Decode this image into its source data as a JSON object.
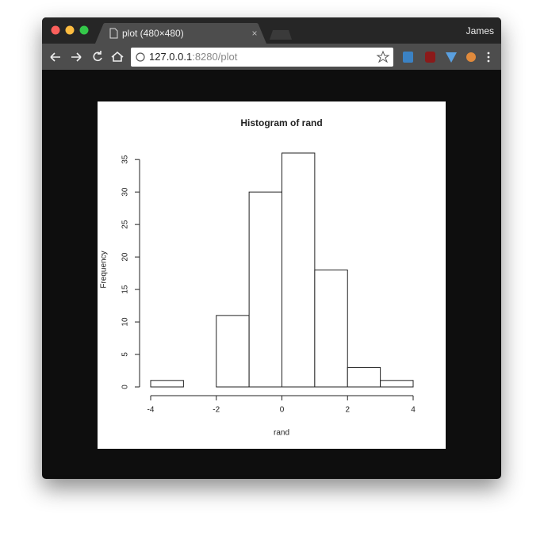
{
  "browser": {
    "tab_title": "plot (480×480)",
    "user": "James",
    "url_host": "127.0.0.1",
    "url_path": ":8280/plot"
  },
  "chart_data": {
    "type": "histogram",
    "title": "Histogram of rand",
    "x_label": "rand",
    "y_label": "Frequency",
    "bins": [
      -4,
      -3,
      -2,
      -1,
      0,
      1,
      2,
      3,
      4
    ],
    "values": [
      1,
      0,
      11,
      30,
      36,
      18,
      3,
      1
    ],
    "color": "#ffffff",
    "xlim": [
      -4,
      4
    ],
    "xticks": [
      -4,
      -2,
      0,
      2,
      4
    ],
    "ylim": [
      0,
      36
    ],
    "yticks": [
      0,
      5,
      10,
      15,
      20,
      25,
      30,
      35
    ]
  }
}
